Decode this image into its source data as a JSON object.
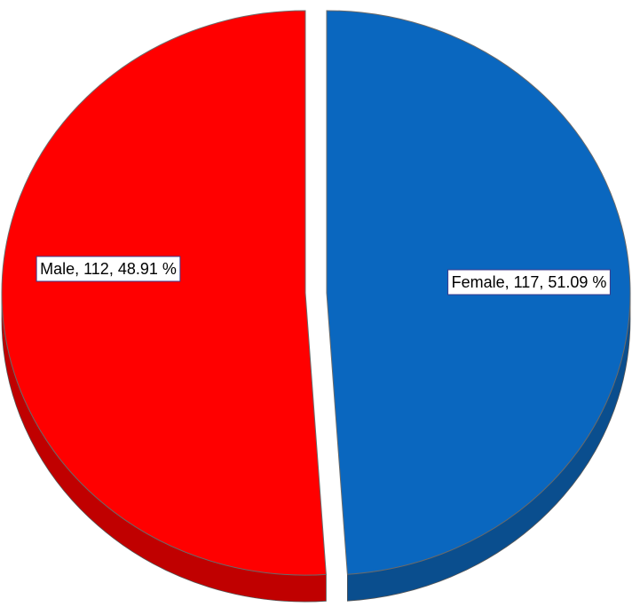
{
  "chart_data": {
    "type": "pie",
    "style": "3d-exploded",
    "title": "",
    "slices": [
      {
        "category": "Male",
        "count": 112,
        "percent": 48.91,
        "label": "Male, 112, 48.91 %",
        "color": "#0a67bf",
        "side_color": "#0a4e8e"
      },
      {
        "category": "Female",
        "count": 117,
        "percent": 51.09,
        "label": "Female, 117, 51.09 %",
        "color": "#ff0000",
        "side_color": "#c00000"
      }
    ],
    "legend": "none",
    "label_box_color": "#ffffff",
    "label_border_color": "#3a3a8c"
  }
}
